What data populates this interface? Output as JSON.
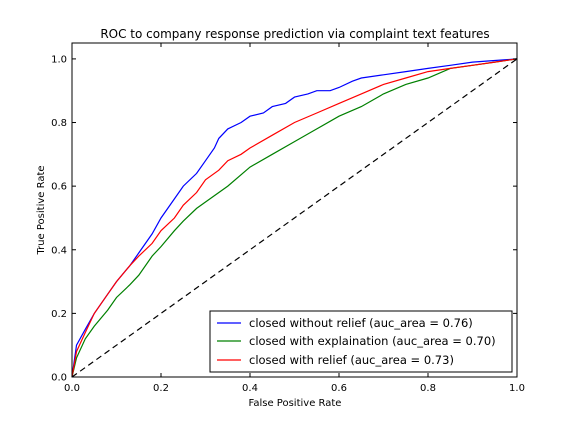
{
  "chart_data": {
    "type": "line",
    "title": "ROC to company response prediction via complaint text features",
    "xlabel": "False Positive Rate",
    "ylabel": "True Positive Rate",
    "xlim": [
      0,
      1
    ],
    "ylim": [
      0,
      1.05
    ],
    "xticks": [
      "0.0",
      "0.2",
      "0.4",
      "0.6",
      "0.8",
      "1.0"
    ],
    "yticks": [
      "0.0",
      "0.2",
      "0.4",
      "0.6",
      "0.8",
      "1.0"
    ],
    "grid": false,
    "legend_position": "lower right",
    "series": [
      {
        "name": "closed without relief (auc_area = 0.76)",
        "color": "#0000ff",
        "style": "solid",
        "x": [
          0,
          0.01,
          0.03,
          0.05,
          0.08,
          0.1,
          0.13,
          0.15,
          0.18,
          0.2,
          0.23,
          0.25,
          0.28,
          0.3,
          0.32,
          0.33,
          0.35,
          0.38,
          0.4,
          0.43,
          0.45,
          0.48,
          0.5,
          0.53,
          0.55,
          0.58,
          0.6,
          0.63,
          0.65,
          0.7,
          0.75,
          0.8,
          0.85,
          0.9,
          0.95,
          1.0
        ],
        "y": [
          0,
          0.1,
          0.15,
          0.2,
          0.26,
          0.3,
          0.35,
          0.39,
          0.45,
          0.5,
          0.56,
          0.6,
          0.64,
          0.68,
          0.72,
          0.75,
          0.78,
          0.8,
          0.82,
          0.83,
          0.85,
          0.86,
          0.88,
          0.89,
          0.9,
          0.9,
          0.91,
          0.93,
          0.94,
          0.95,
          0.96,
          0.97,
          0.98,
          0.99,
          0.995,
          1.0
        ]
      },
      {
        "name": "closed with explaination (auc_area = 0.70)",
        "color": "#008000",
        "style": "solid",
        "x": [
          0,
          0.01,
          0.03,
          0.05,
          0.08,
          0.1,
          0.13,
          0.15,
          0.18,
          0.2,
          0.23,
          0.25,
          0.28,
          0.3,
          0.35,
          0.4,
          0.45,
          0.5,
          0.55,
          0.6,
          0.65,
          0.7,
          0.75,
          0.8,
          0.85,
          0.9,
          0.95,
          1.0
        ],
        "y": [
          0,
          0.06,
          0.12,
          0.16,
          0.21,
          0.25,
          0.29,
          0.32,
          0.38,
          0.41,
          0.46,
          0.49,
          0.53,
          0.55,
          0.6,
          0.66,
          0.7,
          0.74,
          0.78,
          0.82,
          0.85,
          0.89,
          0.92,
          0.94,
          0.97,
          0.98,
          0.99,
          1.0
        ]
      },
      {
        "name": "closed with relief (auc_area = 0.73)",
        "color": "#ff0000",
        "style": "solid",
        "x": [
          0,
          0.01,
          0.03,
          0.05,
          0.08,
          0.1,
          0.13,
          0.15,
          0.18,
          0.2,
          0.23,
          0.25,
          0.28,
          0.3,
          0.33,
          0.35,
          0.38,
          0.4,
          0.45,
          0.5,
          0.55,
          0.6,
          0.65,
          0.7,
          0.75,
          0.8,
          0.85,
          0.9,
          0.95,
          1.0
        ],
        "y": [
          0,
          0.08,
          0.14,
          0.2,
          0.26,
          0.3,
          0.35,
          0.38,
          0.42,
          0.46,
          0.5,
          0.54,
          0.58,
          0.62,
          0.65,
          0.68,
          0.7,
          0.72,
          0.76,
          0.8,
          0.83,
          0.86,
          0.89,
          0.92,
          0.94,
          0.96,
          0.97,
          0.98,
          0.99,
          1.0
        ]
      },
      {
        "color": "#000000",
        "style": "dashed",
        "x": [
          0,
          1
        ],
        "y": [
          0,
          1
        ]
      }
    ]
  }
}
